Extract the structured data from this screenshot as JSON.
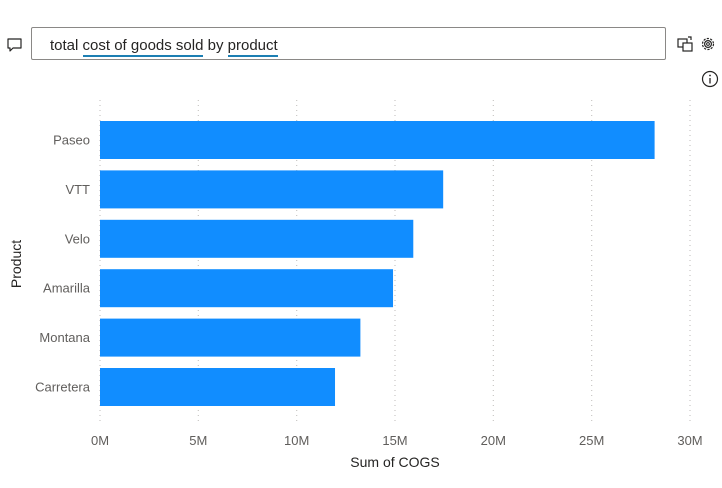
{
  "qa": {
    "question_parts": [
      {
        "text": "total ",
        "term": false
      },
      {
        "text": "cost of goods sold",
        "term": true
      },
      {
        "text": " by ",
        "term": false
      },
      {
        "text": "product",
        "term": true
      }
    ]
  },
  "icons": {
    "chat": "chat-bubble-icon",
    "convert": "convert-to-visual-icon",
    "settings": "gear-icon",
    "info": "info-icon"
  },
  "chart_data": {
    "type": "bar",
    "orientation": "horizontal",
    "categories": [
      "Paseo",
      "VTT",
      "Velo",
      "Amarilla",
      "Montana",
      "Carretera"
    ],
    "values": [
      28200000,
      17450000,
      15930000,
      14900000,
      13240000,
      11950000
    ],
    "xlabel": "Sum of COGS",
    "ylabel": "Product",
    "xlim": [
      0,
      30000000
    ],
    "x_ticks": [
      0,
      5000000,
      10000000,
      15000000,
      20000000,
      25000000,
      30000000
    ],
    "x_tick_labels": [
      "0M",
      "5M",
      "10M",
      "15M",
      "20M",
      "25M",
      "30M"
    ],
    "grid": "vertical-dotted",
    "bar_color": "#118dff",
    "grid_color": "#c8c6c4"
  }
}
